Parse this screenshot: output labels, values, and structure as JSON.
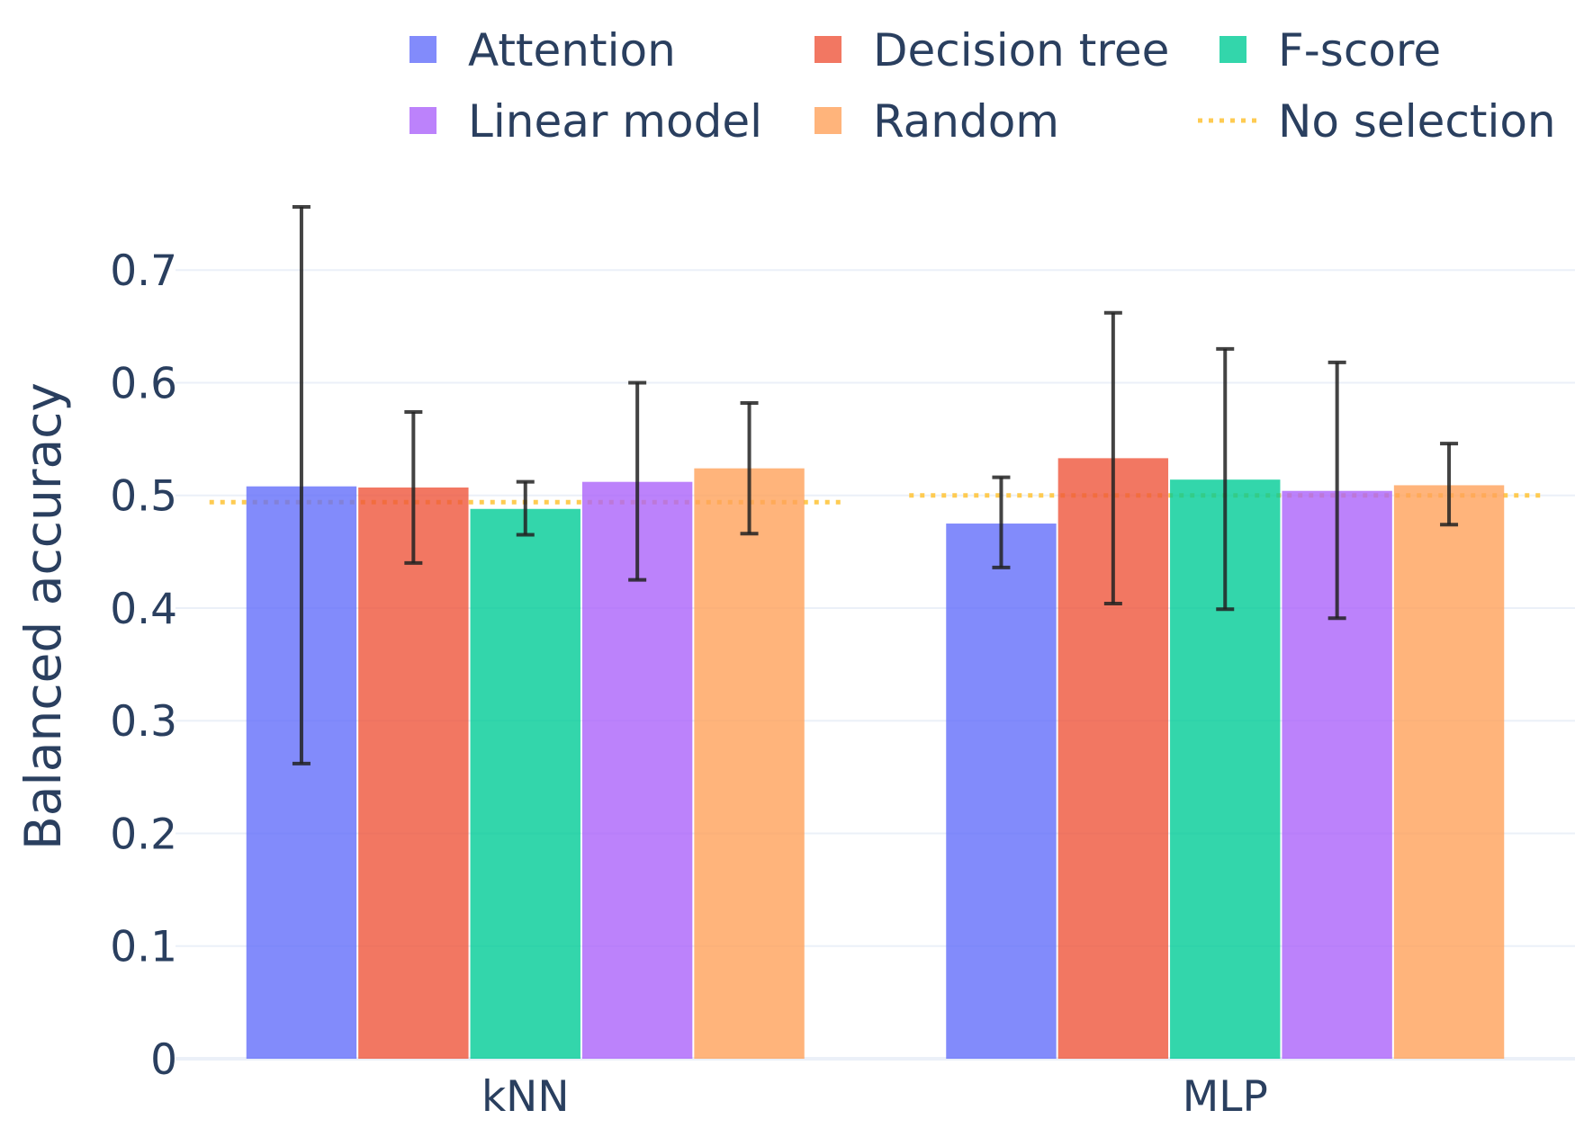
{
  "chart_data": {
    "type": "bar",
    "title": "",
    "xlabel": "",
    "ylabel": "Balanced accuracy",
    "categories": [
      "kNN",
      "MLP"
    ],
    "ylim": [
      0,
      0.78
    ],
    "yticks": [
      0,
      0.1,
      0.2,
      0.3,
      0.4,
      0.5,
      0.6,
      0.7
    ],
    "ytick_labels": [
      "0",
      "0.1",
      "0.2",
      "0.3",
      "0.4",
      "0.5",
      "0.6",
      "0.7"
    ],
    "grid": true,
    "legend_position": "top",
    "series": [
      {
        "name": "Attention",
        "color": "#636efa",
        "values": [
          0.508,
          0.475
        ],
        "error_low": [
          0.262,
          0.436
        ],
        "error_high": [
          0.756,
          0.516
        ]
      },
      {
        "name": "Decision tree",
        "color": "#ef553b",
        "values": [
          0.507,
          0.533
        ],
        "error_low": [
          0.44,
          0.404
        ],
        "error_high": [
          0.574,
          0.662
        ]
      },
      {
        "name": "F-score",
        "color": "#00cc96",
        "values": [
          0.488,
          0.514
        ],
        "error_low": [
          0.465,
          0.399
        ],
        "error_high": [
          0.512,
          0.63
        ]
      },
      {
        "name": "Linear model",
        "color": "#ab63fa",
        "values": [
          0.512,
          0.504
        ],
        "error_low": [
          0.425,
          0.391
        ],
        "error_high": [
          0.6,
          0.618
        ]
      },
      {
        "name": "Random",
        "color": "#ffa15a",
        "values": [
          0.524,
          0.509
        ],
        "error_low": [
          0.466,
          0.474
        ],
        "error_high": [
          0.582,
          0.546
        ]
      }
    ],
    "reference_line": {
      "name": "No selection",
      "color": "#fecb52",
      "style": "dotted",
      "values": [
        0.494,
        0.5
      ]
    }
  }
}
